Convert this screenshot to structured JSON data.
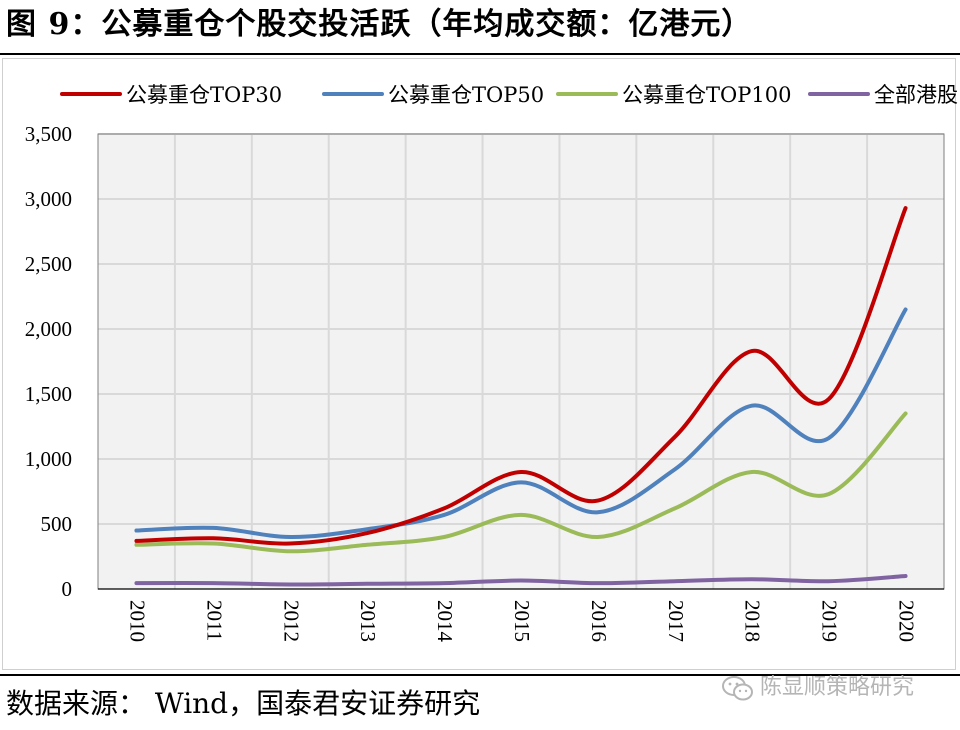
{
  "header": {
    "title": "图 9：公募重仓个股交投活跃（年均成交额：亿港元）"
  },
  "footer": {
    "source": "数据来源： Wind，国泰君安证券研究",
    "watermark": "陈显顺策略研究",
    "watermark_icon": "wechat-icon"
  },
  "colors": {
    "top30": "#C00000",
    "top50": "#4F81BD",
    "top100": "#9BBB59",
    "all_hk": "#8064A2",
    "grid": "#d9d9d9",
    "plot_bg": "#f2f2f2"
  },
  "chart_data": {
    "type": "line",
    "title": "公募重仓个股交投活跃（年均成交额：亿港元）",
    "x": [
      "2010",
      "2011",
      "2012",
      "2013",
      "2014",
      "2015",
      "2016",
      "2017",
      "2018",
      "2019",
      "2020"
    ],
    "ylim": [
      0,
      3500
    ],
    "yticks": [
      0,
      500,
      1000,
      1500,
      2000,
      2500,
      3000,
      3500
    ],
    "ytick_labels": [
      "0",
      "500",
      "1,000",
      "1,500",
      "2,000",
      "2,500",
      "3,000",
      "3,500"
    ],
    "grid": true,
    "legend_position": "top",
    "smooth": true,
    "series": [
      {
        "name": "公募重仓TOP30",
        "color": "#C00000",
        "values": [
          370,
          390,
          350,
          430,
          620,
          900,
          680,
          1170,
          1830,
          1460,
          2930
        ]
      },
      {
        "name": "公募重仓TOP50",
        "color": "#4F81BD",
        "values": [
          450,
          470,
          400,
          460,
          570,
          820,
          590,
          920,
          1410,
          1160,
          2150
        ]
      },
      {
        "name": "公募重仓TOP100",
        "color": "#9BBB59",
        "values": [
          340,
          350,
          290,
          340,
          400,
          570,
          400,
          620,
          900,
          730,
          1350
        ]
      },
      {
        "name": "全部港股",
        "color": "#8064A2",
        "values": [
          45,
          45,
          35,
          40,
          45,
          65,
          45,
          60,
          75,
          60,
          100
        ]
      }
    ]
  }
}
